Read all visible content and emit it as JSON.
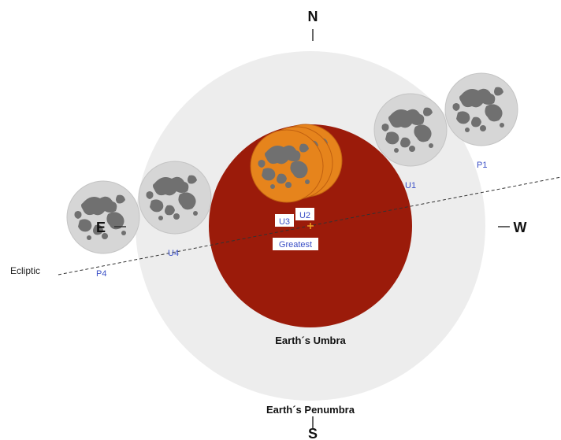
{
  "directions": {
    "north": "N",
    "south": "S",
    "east": "E",
    "west": "W"
  },
  "labels": {
    "umbra": "Earth´s Umbra",
    "penumbra": "Earth´s Penumbra",
    "ecliptic": "Ecliptic",
    "greatest": "Greatest"
  },
  "contacts": {
    "p1": "P1",
    "u1": "U1",
    "u2": "U2",
    "u3": "U3",
    "u4": "U4",
    "p4": "P4"
  },
  "colors": {
    "penumbra": "#ededed",
    "umbra": "#9b1b0a",
    "eclipsed_moon": "#e6841c",
    "moon_dark": "#707070",
    "moon_light": "#d6d6d6",
    "contact_label": "#3a4fc6",
    "greatest_marker": "#f0a020"
  }
}
